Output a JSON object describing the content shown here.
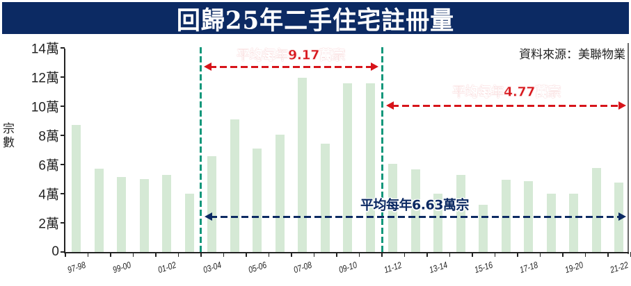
{
  "title": "回歸25年二手住宅註冊量",
  "source": "資料來源：美聯物業",
  "colors": {
    "title_bg": "#0c2a63",
    "bar": "#d5e9d5",
    "period_divider": "#12977b",
    "red_annotation": "#d7141a",
    "navy_annotation": "#0c2a63"
  },
  "annotations": {
    "period1": "平均每年9.17萬宗",
    "period2": "平均每年4.77萬宗",
    "overall": "平均每年6.63萬宗"
  },
  "chart_data": {
    "type": "bar",
    "title": "回歸25年二手住宅註冊量",
    "xlabel": "",
    "ylabel": "宗數",
    "ylim": [
      0,
      140000
    ],
    "yticks": [
      "0",
      "2萬",
      "4萬",
      "6萬",
      "8萬",
      "10萬",
      "12萬",
      "14萬"
    ],
    "xtick_labels_shown": [
      "97-98",
      "99-00",
      "01-02",
      "03-04",
      "05-06",
      "07-08",
      "09-10",
      "11-12",
      "13-14",
      "15-16",
      "17-18",
      "19-20",
      "21-22"
    ],
    "categories": [
      "97-98",
      "98-99",
      "99-00",
      "00-01",
      "01-02",
      "02-03",
      "03-04",
      "04-05",
      "05-06",
      "06-07",
      "07-08",
      "08-09",
      "09-10",
      "10-11",
      "11-12",
      "12-13",
      "13-14",
      "14-15",
      "15-16",
      "16-17",
      "17-18",
      "18-19",
      "19-20",
      "20-21",
      "21-22"
    ],
    "values": [
      87100,
      57100,
      51400,
      50100,
      53000,
      40000,
      65700,
      91100,
      70800,
      80300,
      119400,
      74400,
      115700,
      115700,
      60600,
      56500,
      39800,
      53000,
      32200,
      49400,
      48400,
      39800,
      39800,
      57800,
      47600
    ],
    "unit": "宗",
    "grid": false,
    "annotations": [
      {
        "text": "平均每年9.17萬宗",
        "range": [
          "03-04",
          "10-11"
        ],
        "color": "#d7141a"
      },
      {
        "text": "平均每年4.77萬宗",
        "range": [
          "11-12",
          "21-22"
        ],
        "color": "#d7141a"
      },
      {
        "text": "平均每年6.63萬宗",
        "range": [
          "03-04",
          "21-22"
        ],
        "color": "#0c2a63"
      }
    ],
    "source": "資料來源：美聯物業"
  }
}
